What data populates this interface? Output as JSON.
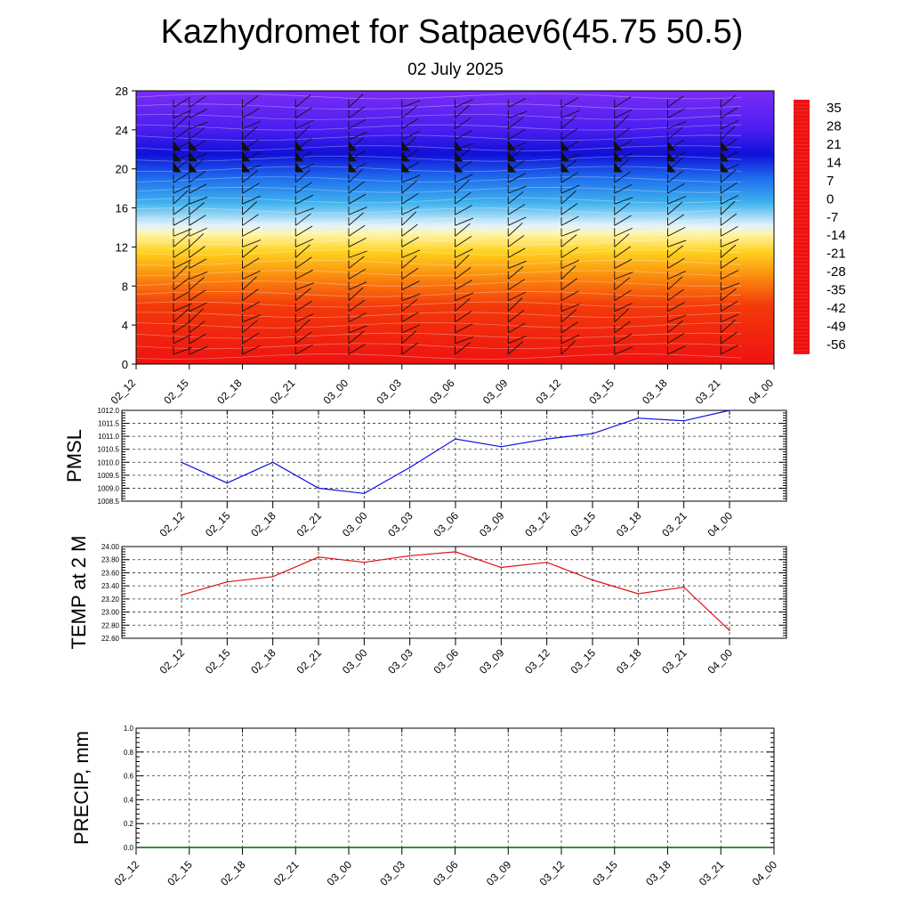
{
  "header": {
    "title": "Kazhydromet for Satpaev6(45.75 50.5)",
    "subtitle": "02 July 2025"
  },
  "colors": {
    "pmsl_line": "#1010e0",
    "temp_line": "#e01010",
    "precip_line": "#006400",
    "grid": "#333333"
  },
  "chart_data": [
    {
      "type": "heatmap",
      "name": "temperature-wind-profile",
      "x_ticks": [
        "02_12",
        "02_15",
        "02_18",
        "02_21",
        "03_00",
        "03_03",
        "03_06",
        "03_09",
        "03_12",
        "03_15",
        "03_18",
        "03_21",
        "04_00"
      ],
      "y_ticks": [
        0,
        4,
        8,
        12,
        16,
        20,
        24,
        28
      ],
      "ylim": [
        0,
        28
      ],
      "colorbar_labels": [
        "35",
        "28",
        "21",
        "14",
        "7",
        "0",
        "-7",
        "-14",
        "-21",
        "-28",
        "-35",
        "-42",
        "-49",
        "-56"
      ],
      "color_stops": [
        {
          "v": 0,
          "c": "#ee1111"
        },
        {
          "v": 6,
          "c": "#f33a0a"
        },
        {
          "v": 9,
          "c": "#fb8c0f"
        },
        {
          "v": 11.5,
          "c": "#ffd21f"
        },
        {
          "v": 13.3,
          "c": "#fff4a6"
        },
        {
          "v": 14.2,
          "c": "#e4f3fb"
        },
        {
          "v": 16.5,
          "c": "#3fb3ee"
        },
        {
          "v": 19,
          "c": "#1f6fee"
        },
        {
          "v": 21.5,
          "c": "#1010d8"
        },
        {
          "v": 24,
          "c": "#4a1ef0"
        },
        {
          "v": 28,
          "c": "#7a2cf5"
        }
      ]
    },
    {
      "type": "line",
      "name": "PMSL",
      "ylabel": "PMSL",
      "categories": [
        "02_12",
        "02_15",
        "02_18",
        "02_21",
        "03_00",
        "03_03",
        "03_06",
        "03_09",
        "03_12",
        "03_15",
        "03_18",
        "03_21",
        "04_00"
      ],
      "values": [
        1010.0,
        1009.2,
        1010.0,
        1009.0,
        1008.8,
        1009.8,
        1010.9,
        1010.6,
        1010.9,
        1011.1,
        1011.7,
        1011.6,
        1012.0
      ],
      "ylim": [
        1008.5,
        1012.0
      ],
      "y_ticks": [
        "1008.5",
        "1009.0",
        "1009.5",
        "1010.0",
        "1010.5",
        "1011.0",
        "1011.5",
        "1012.0"
      ],
      "grid": true
    },
    {
      "type": "line",
      "name": "TEMP at 2 M",
      "ylabel": "TEMP at 2 M",
      "categories": [
        "02_12",
        "02_15",
        "02_18",
        "02_21",
        "03_00",
        "03_03",
        "03_06",
        "03_09",
        "03_12",
        "03_15",
        "03_18",
        "03_21",
        "04_00"
      ],
      "values": [
        23.26,
        23.46,
        23.54,
        23.84,
        23.76,
        23.86,
        23.92,
        23.68,
        23.76,
        23.49,
        23.28,
        23.38,
        22.72
      ],
      "ylim": [
        22.6,
        24.0
      ],
      "y_ticks": [
        "22.60",
        "22.80",
        "23.00",
        "23.20",
        "23.40",
        "23.60",
        "23.80",
        "24.00"
      ],
      "grid": true
    },
    {
      "type": "line",
      "name": "PRECIP, mm",
      "ylabel": "PRECIP, mm",
      "categories": [
        "02_12",
        "02_15",
        "02_18",
        "02_21",
        "03_00",
        "03_03",
        "03_06",
        "03_09",
        "03_12",
        "03_15",
        "03_18",
        "03_21",
        "04_00"
      ],
      "values": [
        0,
        0,
        0,
        0,
        0,
        0,
        0,
        0,
        0,
        0,
        0,
        0,
        0
      ],
      "ylim": [
        0.0,
        1.0
      ],
      "y_ticks": [
        "0.0",
        "0.2",
        "0.4",
        "0.6",
        "0.8",
        "1.0"
      ],
      "grid": true
    }
  ]
}
